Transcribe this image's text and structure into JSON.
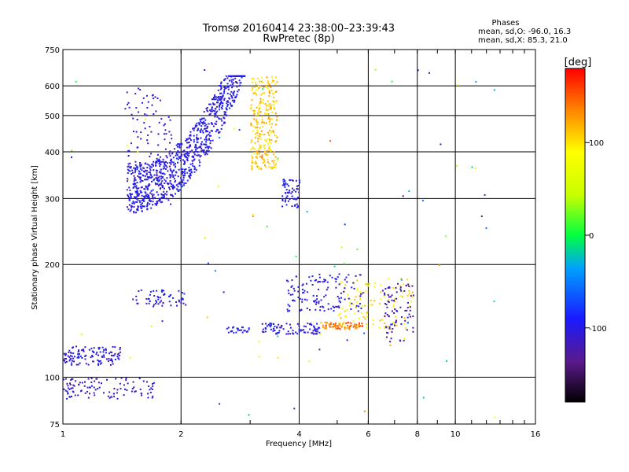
{
  "chart_data": {
    "type": "scatter",
    "title": "Tromsø 20160414 23:38:00–23:39:43",
    "subtitle": "RwPretec (8p)",
    "xlabel": "Frequency [MHz]",
    "ylabel": "Stationary phase Virtual Height [km]",
    "x_scale": "log",
    "y_scale": "log",
    "xlim": [
      1,
      16
    ],
    "ylim": [
      75,
      750
    ],
    "x_ticks": [
      1,
      2,
      4,
      6,
      8,
      10,
      16
    ],
    "x_tick_labels": [
      "1",
      "2",
      "4",
      "6",
      "8",
      "10",
      "16"
    ],
    "x_gridlines": [
      2,
      4,
      6,
      8,
      10
    ],
    "y_ticks": [
      75,
      100,
      200,
      300,
      400,
      500,
      600,
      750
    ],
    "y_tick_labels": [
      "75",
      "100",
      "200",
      "300",
      "400",
      "500",
      "600",
      "750"
    ],
    "y_gridlines": [
      100,
      200,
      300,
      400,
      500,
      600
    ],
    "grid": true,
    "legend": {
      "title": "Phases",
      "lines": [
        "mean, sd,O: -96.0, 16.3",
        "mean, sd,X:  85.3, 21.0"
      ],
      "placement": "top-right"
    },
    "colorbar": {
      "label": "[deg]",
      "range": [
        -180,
        180
      ],
      "ticks": [
        100,
        0,
        -100
      ],
      "tick_labels": [
        "100",
        "0",
        "-100"
      ],
      "placement": "right"
    },
    "point_color_value": "phase [deg]",
    "clusters": [
      {
        "x": [
          1.45,
          2.9
        ],
        "y": [
          275,
          640
        ],
        "phase": -100,
        "count": 900,
        "shape": "upper-curve"
      },
      {
        "x": [
          3.0,
          3.5
        ],
        "y": [
          360,
          640
        ],
        "phase": 110,
        "count": 260
      },
      {
        "x": [
          1.45,
          1.9
        ],
        "y": [
          290,
          600
        ],
        "phase": -110,
        "count": 120
      },
      {
        "x": [
          3.6,
          4.0
        ],
        "y": [
          285,
          340
        ],
        "phase": -100,
        "count": 60
      },
      {
        "x": [
          1.0,
          1.4
        ],
        "y": [
          108,
          122
        ],
        "phase": -105,
        "count": 120
      },
      {
        "x": [
          1.0,
          1.7
        ],
        "y": [
          88,
          100
        ],
        "phase": -110,
        "count": 110
      },
      {
        "x": [
          1.5,
          2.05
        ],
        "y": [
          155,
          172
        ],
        "phase": -100,
        "count": 60
      },
      {
        "x": [
          2.6,
          3.0
        ],
        "y": [
          131,
          137
        ],
        "phase": -100,
        "count": 25
      },
      {
        "x": [
          3.2,
          4.5
        ],
        "y": [
          131,
          140
        ],
        "phase": -100,
        "count": 90
      },
      {
        "x": [
          4.5,
          5.8
        ],
        "y": [
          135,
          141
        ],
        "phase": 140,
        "count": 70
      },
      {
        "x": [
          5.0,
          7.8
        ],
        "y": [
          135,
          185
        ],
        "phase": 100,
        "count": 110
      },
      {
        "x": [
          3.7,
          5.8
        ],
        "y": [
          150,
          190
        ],
        "phase": -100,
        "count": 130
      },
      {
        "x": [
          6.5,
          7.8
        ],
        "y": [
          125,
          180
        ],
        "phase": -120,
        "count": 80
      },
      {
        "x": [
          1.0,
          13.0
        ],
        "y": [
          78,
          680
        ],
        "phase": 0,
        "count": 80,
        "shape": "scattered"
      }
    ]
  }
}
